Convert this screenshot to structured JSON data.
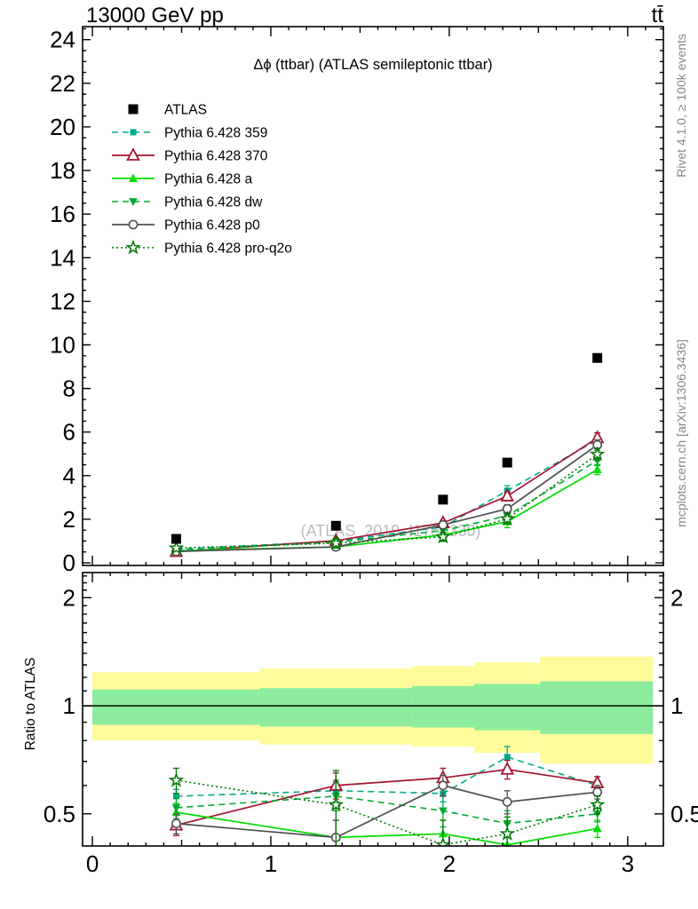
{
  "header": {
    "beam": "13000 GeV pp",
    "process": "tt̄"
  },
  "side_notes": {
    "rivet": "Rivet 4.1.0, ≥ 100k events",
    "mcplots": "mcplots.cern.ch [arXiv:1306.3436]"
  },
  "watermark": "(ATLAS_2019_I1750330)",
  "colors": {
    "band_outer": "#fffb9a",
    "band_inner": "#8ceb9c",
    "frame": "#000000",
    "side_text": "#858585",
    "watermark_text": "#bcbcbc"
  },
  "chart_data": {
    "type": "line",
    "title": "Δϕ (ttbar) (ATLAS semileptonic ttbar)",
    "x": [
      0.47,
      1.365,
      1.965,
      2.325,
      2.83
    ],
    "x_bin_edges": [
      0,
      0.94,
      1.79,
      2.14,
      2.51,
      3.1416
    ],
    "xlim": [
      0,
      3.2
    ],
    "x_axis": {
      "labeled_ticks": [
        0,
        1,
        2,
        3
      ],
      "minor_step": 0.1,
      "medium_step": 0.5,
      "major_step": 1
    },
    "main_panel": {
      "ylim": [
        0,
        24.6
      ],
      "yticks_labeled": [
        0,
        2,
        4,
        6,
        8,
        10,
        12,
        14,
        16,
        18,
        20,
        22,
        24
      ],
      "ytick_minor_step": 0.5,
      "ytick_major_step": 2,
      "grid": false,
      "legend_position": "top-left-inside"
    },
    "ratio_panel": {
      "ylabel": "Ratio to ATLAS",
      "yscale": "log",
      "ylim": [
        0.407,
        2.35
      ],
      "yticks_labeled": [
        0.5,
        1,
        2
      ],
      "ytick_labels": [
        "0.5",
        "1",
        "2"
      ],
      "yticks_minor": [
        0.4,
        0.6,
        0.7,
        0.8,
        0.9,
        1.1,
        1.2,
        1.3,
        1.4,
        1.5,
        1.6,
        1.7,
        1.8,
        1.9,
        2.1,
        2.2,
        2.3
      ],
      "unity_line": 1.0,
      "band_x_edges": [
        0,
        0.94,
        1.79,
        2.14,
        2.51,
        3.1416
      ],
      "band_outer": [
        [
          0.8,
          1.24
        ],
        [
          0.78,
          1.27
        ],
        [
          0.77,
          1.29
        ],
        [
          0.74,
          1.32
        ],
        [
          0.69,
          1.37
        ]
      ],
      "band_inner": [
        [
          0.885,
          1.11
        ],
        [
          0.875,
          1.12
        ],
        [
          0.87,
          1.135
        ],
        [
          0.855,
          1.15
        ],
        [
          0.835,
          1.17
        ]
      ]
    },
    "reference": {
      "name": "ATLAS",
      "color": "#000000",
      "marker": "square-filled",
      "line": "none",
      "values": [
        1.1,
        1.7,
        2.9,
        4.6,
        9.4
      ]
    },
    "series": [
      {
        "name": "Pythia 6.428 359",
        "color": "#00aa88",
        "line": "dashed",
        "marker": "square-filled-small",
        "values": [
          0.62,
          0.99,
          1.65,
          3.31,
          5.64
        ],
        "ratio": [
          0.56,
          0.58,
          0.57,
          0.72,
          0.6
        ],
        "ratio_err": [
          0.025,
          0.04,
          0.03,
          0.05,
          0.02
        ]
      },
      {
        "name": "Pythia 6.428 370",
        "color": "#a31530",
        "line": "solid",
        "marker": "triangle-open",
        "values": [
          0.51,
          1.02,
          1.83,
          3.06,
          5.73
        ],
        "ratio": [
          0.465,
          0.6,
          0.63,
          0.665,
          0.61
        ],
        "ratio_err": [
          0.03,
          0.05,
          0.04,
          0.04,
          0.025
        ]
      },
      {
        "name": "Pythia 6.428 a",
        "color": "#00dd00",
        "line": "solid",
        "marker": "triangle-filled",
        "values": [
          0.56,
          0.73,
          1.28,
          1.89,
          4.28
        ],
        "ratio": [
          0.505,
          0.43,
          0.44,
          0.41,
          0.455
        ],
        "ratio_err": [
          0.03,
          0.05,
          0.04,
          0.06,
          0.025
        ]
      },
      {
        "name": "Pythia 6.428 dw",
        "color": "#00aa33",
        "line": "dashed",
        "marker": "triangle-down-filled",
        "values": [
          0.57,
          0.95,
          1.48,
          2.16,
          4.7
        ],
        "ratio": [
          0.52,
          0.56,
          0.51,
          0.47,
          0.5
        ],
        "ratio_err": [
          0.035,
          0.05,
          0.05,
          0.04,
          0.025
        ]
      },
      {
        "name": "Pythia 6.428 p0",
        "color": "#505050",
        "line": "solid",
        "marker": "circle-open",
        "values": [
          0.52,
          0.73,
          1.74,
          2.48,
          5.41
        ],
        "ratio": [
          0.47,
          0.43,
          0.6,
          0.54,
          0.575
        ],
        "ratio_err": [
          0.03,
          0.05,
          0.04,
          0.04,
          0.025
        ]
      },
      {
        "name": "Pythia 6.428 pro-q2o",
        "color": "#007700",
        "line": "dotted",
        "marker": "star-open",
        "values": [
          0.68,
          0.9,
          1.19,
          2.02,
          4.98
        ],
        "ratio": [
          0.62,
          0.53,
          0.41,
          0.44,
          0.53
        ],
        "ratio_err": [
          0.05,
          0.13,
          0.07,
          0.05,
          0.03
        ]
      }
    ]
  }
}
